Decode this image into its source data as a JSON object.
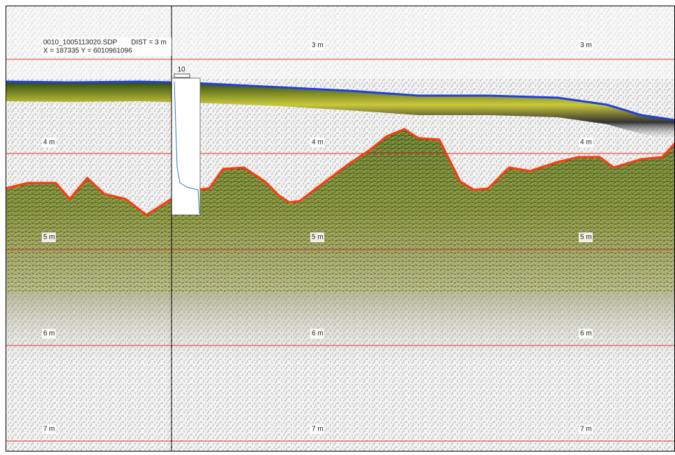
{
  "header": {
    "file": "0010_1005113020.SDP",
    "dist": "DIST = 3 m",
    "coords": "X = 187335 Y = 6010961096"
  },
  "marker": "10",
  "depth_labels": [
    "3 m",
    "4 m",
    "5 m",
    "6 m",
    "7 m"
  ]
}
